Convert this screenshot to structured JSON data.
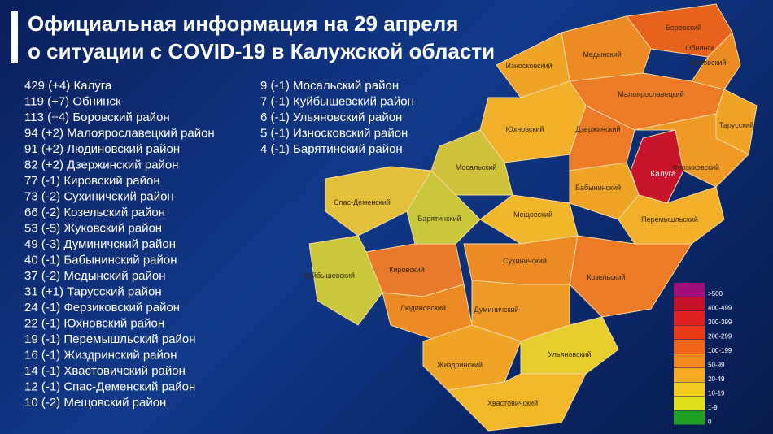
{
  "title": [
    "Официальная информация на 29 апреля",
    "о ситуации с COVID-19 в Калужской области"
  ],
  "list_left": [
    "429 (+4) Калуга",
    "119 (+7) Обнинск",
    "113 (+4) Боровский район",
    "94 (+2) Малоярославецкий район",
    "91 (+2) Людиновский район",
    "82 (+2) Дзержинский район",
    "77 (-1) Кировский район",
    "73 (-2) Сухиничский район",
    "66 (-2) Козельский район",
    "53 (-5) Жуковский район",
    "49 (-3) Думиничский район",
    "40 (-1) Бабынинский район",
    "37 (-2) Медынский район",
    "31 (+1) Тарусский район",
    "24 (-1) Ферзиковский район",
    "22 (-1) Юхновский район",
    "19 (-1) Перемышльский район",
    "16 (-1) Жиздринский район",
    "14 (-1) Хвастовичский район",
    "12 (-1) Спас-Деменский район",
    "10 (-2) Мещовский район"
  ],
  "list_right": [
    "9 (-1) Мосальский район",
    "7 (-1) Куйбышевский район",
    "6 (-1) Ульяновский район",
    "5 (-1) Износковский район",
    "4 (-1) Барятинский район"
  ],
  "map": {
    "regions": [
      "Боровский",
      "Обнинск",
      "Медынский",
      "Жуковский",
      "Износковский",
      "Малоярославецкий",
      "Тарусский",
      "Юхновский",
      "Дзержинский",
      "Калуга",
      "Ферзиковский",
      "Мосальский",
      "Бабынинский",
      "Спас-Деменский",
      "Барятинский",
      "Мещовский",
      "Перемышльский",
      "Кировский",
      "Сухиничский",
      "Козельский",
      "Куйбышевский",
      "Людиновский",
      "Думиничский",
      "Жиздринский",
      "Ульяновский",
      "Хвастовичский"
    ]
  },
  "legend": [
    {
      "label": ">500",
      "color": "#a0107a"
    },
    {
      "label": "400-499",
      "color": "#c8102a"
    },
    {
      "label": "300-399",
      "color": "#e02020"
    },
    {
      "label": "200-299",
      "color": "#ec3a18"
    },
    {
      "label": "100-199",
      "color": "#f0641a"
    },
    {
      "label": "50-99",
      "color": "#f28a1e"
    },
    {
      "label": "20-49",
      "color": "#f4aa22"
    },
    {
      "label": "10-19",
      "color": "#f2cc20"
    },
    {
      "label": "1-9",
      "color": "#dde01a"
    },
    {
      "label": "0",
      "color": "#22a020"
    }
  ]
}
